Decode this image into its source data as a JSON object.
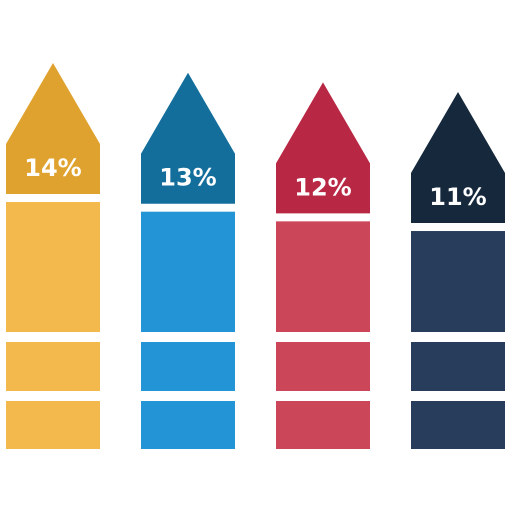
{
  "chart_data": {
    "type": "bar",
    "categories": [
      null,
      null,
      null,
      null
    ],
    "values": [
      14,
      13,
      12,
      11
    ],
    "value_labels": [
      "14%",
      "13%",
      "12%",
      "11%"
    ],
    "colors": [
      "#f4b94d",
      "#2394d5",
      "#cc4659",
      "#283d5b"
    ],
    "head_colors": [
      "#e0a22e",
      "#136e9c",
      "#b82744",
      "#16283c"
    ]
  }
}
